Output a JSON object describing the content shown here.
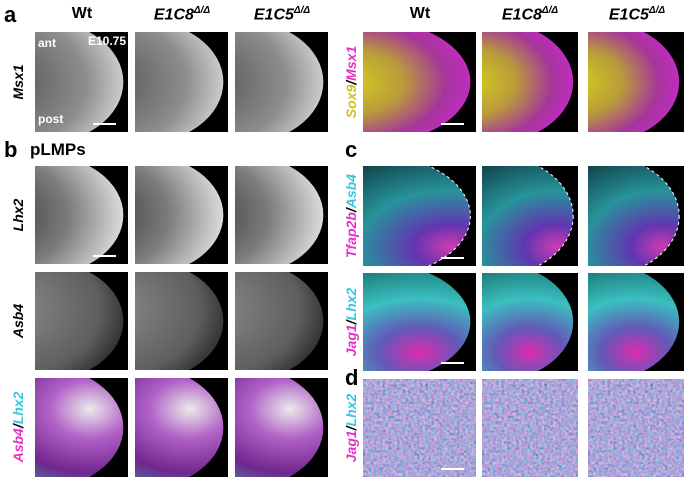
{
  "panel_labels": [
    "a",
    "b",
    "c",
    "d"
  ],
  "column_headers": {
    "left": [
      {
        "name": "Wt"
      },
      {
        "name": "E1C8",
        "sup": "Δ/Δ"
      },
      {
        "name": "E1C5",
        "sup": "Δ/Δ"
      }
    ],
    "right": [
      {
        "name": "Wt"
      },
      {
        "name": "E1C8",
        "sup": "Δ/Δ"
      },
      {
        "name": "E1C5",
        "sup": "Δ/Δ"
      }
    ]
  },
  "subtitle": "pLMPs",
  "annotations": {
    "anterior": "ant",
    "posterior": "post",
    "stage": "E10.75"
  },
  "row_labels": {
    "left": [
      [
        {
          "text": "Msx1"
        }
      ],
      [
        {
          "text": "Lhx2"
        }
      ],
      [
        {
          "text": "Asb4"
        }
      ],
      [
        {
          "text": "Asb4"
        },
        {
          "text": "/"
        },
        {
          "text": "Lhx2"
        }
      ]
    ],
    "right": [
      [
        {
          "text": "Sox9"
        },
        {
          "text": "/"
        },
        {
          "text": "Msx1"
        }
      ],
      [
        {
          "text": "Tfap2b"
        },
        {
          "text": "/"
        },
        {
          "text": "Asb4"
        }
      ],
      [
        {
          "text": "Jag1"
        },
        {
          "text": "/"
        },
        {
          "text": "Lhx2"
        }
      ],
      [
        {
          "text": "Jag1"
        },
        {
          "text": "/"
        },
        {
          "text": "Lhx2"
        }
      ]
    ]
  }
}
